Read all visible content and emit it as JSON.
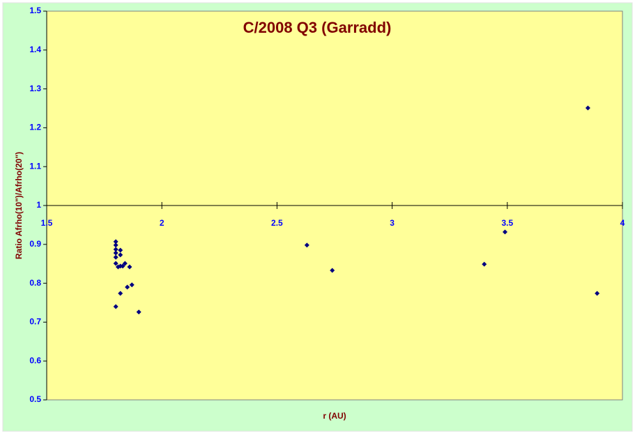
{
  "chart_data": {
    "type": "scatter",
    "title": "C/2008 Q3 (Garradd)",
    "x_label": "r (AU)",
    "y_label": "Ratio Afrho(10\")/Afrho(20\")",
    "xlim": [
      1.5,
      4
    ],
    "ylim": [
      0.5,
      1.5
    ],
    "xticks": [
      1.5,
      2,
      2.5,
      3,
      3.5,
      4
    ],
    "yticks": [
      0.5,
      0.6,
      0.7,
      0.8,
      0.9,
      1,
      1.1,
      1.2,
      1.3,
      1.4,
      1.5
    ],
    "x_axis_crosses_at": 1,
    "grid": false,
    "series": [
      {
        "color": "#000080",
        "x": [
          1.8,
          1.8,
          1.8,
          1.8,
          1.8,
          1.8,
          1.8,
          1.81,
          1.82,
          1.82,
          1.82,
          1.82,
          1.83,
          1.84,
          1.85,
          1.86,
          1.87,
          1.9,
          2.63,
          2.74,
          3.4,
          3.49,
          3.85,
          3.89
        ],
        "values": [
          0.907,
          0.898,
          0.887,
          0.878,
          0.867,
          0.851,
          0.74,
          0.842,
          0.885,
          0.873,
          0.844,
          0.774,
          0.844,
          0.851,
          0.79,
          0.842,
          0.796,
          0.726,
          0.898,
          0.833,
          0.849,
          0.932,
          1.251,
          0.774
        ]
      }
    ]
  }
}
